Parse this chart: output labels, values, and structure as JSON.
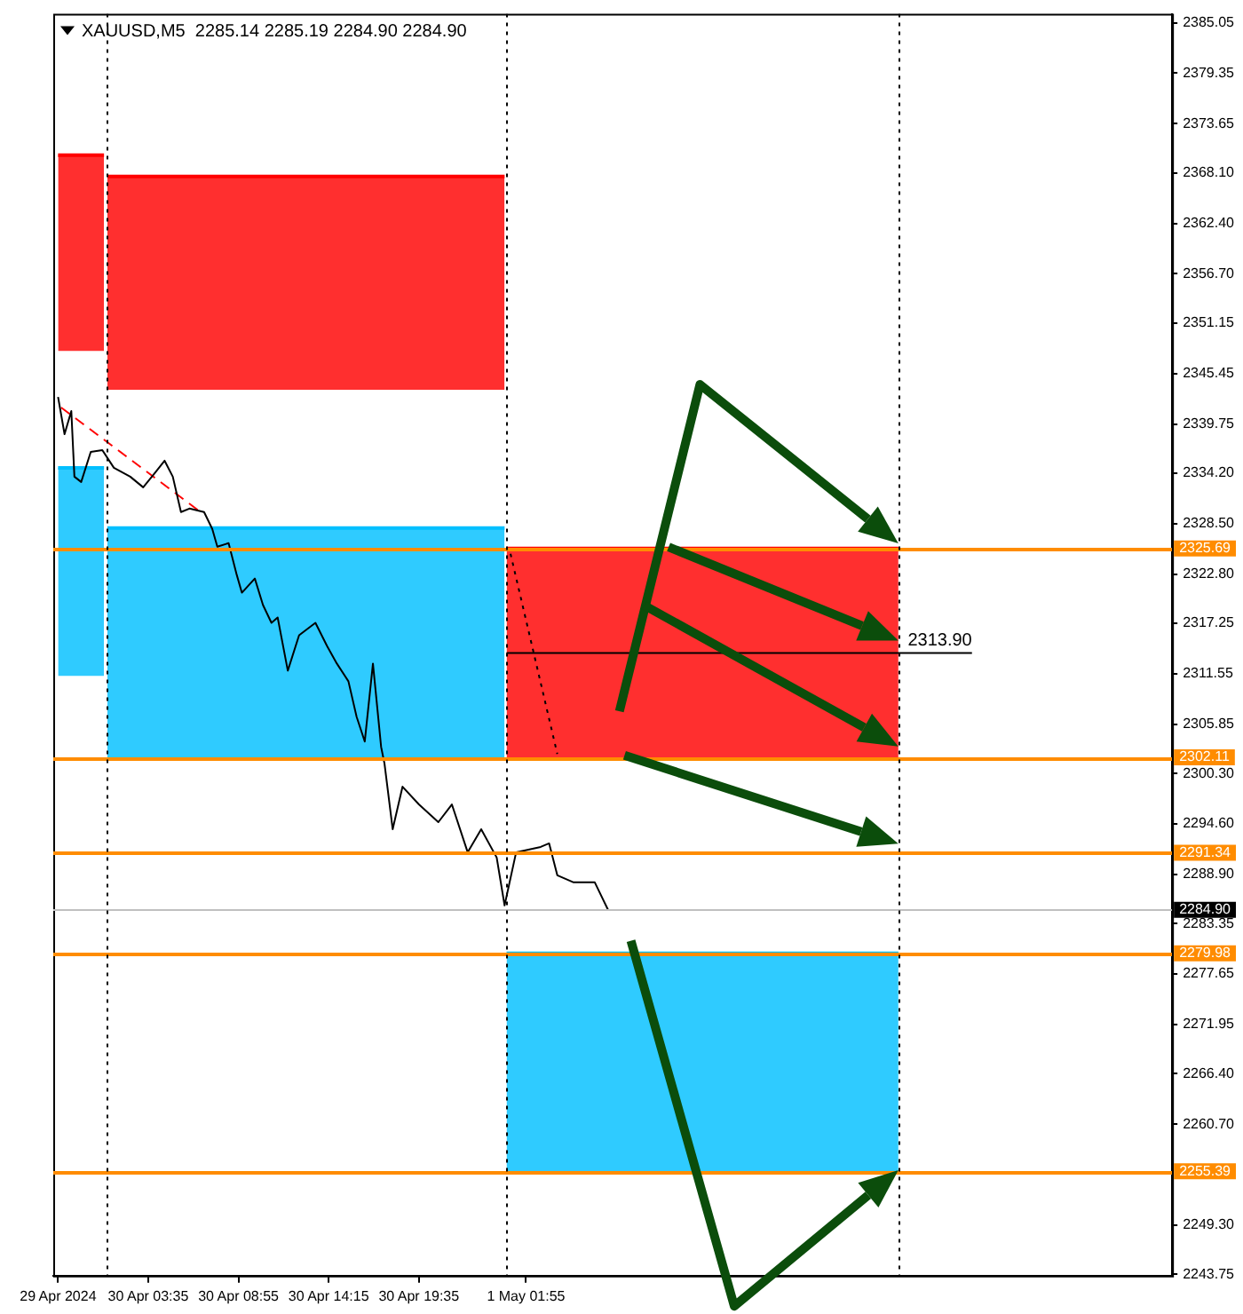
{
  "chart_data": {
    "type": "line",
    "title": "XAUUSD,M5  2285.14 2285.19 2284.90 2284.90",
    "xlim": [
      "2024-04-29T21:58",
      "2024-05-02T16:07"
    ],
    "xticks": [
      {
        "value": "2024-04-29T22:15",
        "label": "29 Apr 2024"
      },
      {
        "value": "2024-04-30T03:35",
        "label": "30 Apr 03:35"
      },
      {
        "value": "2024-04-30T08:55",
        "label": "30 Apr 08:55"
      },
      {
        "value": "2024-04-30T14:15",
        "label": "30 Apr 14:15"
      },
      {
        "value": "2024-04-30T19:35",
        "label": "30 Apr 19:35"
      },
      {
        "value": "2024-05-01T01:55",
        "label": "1 May 01:55"
      }
    ],
    "ylim": [
      2243.6,
      2386.05
    ],
    "yticks": [
      {
        "value": 2385.05,
        "label": "2385.05"
      },
      {
        "value": 2379.35,
        "label": "2379.35"
      },
      {
        "value": 2373.65,
        "label": "2373.65"
      },
      {
        "value": 2368.1,
        "label": "2368.10"
      },
      {
        "value": 2362.4,
        "label": "2362.40"
      },
      {
        "value": 2356.7,
        "label": "2356.70"
      },
      {
        "value": 2351.15,
        "label": "2351.15"
      },
      {
        "value": 2345.45,
        "label": "2345.45"
      },
      {
        "value": 2339.75,
        "label": "2339.75"
      },
      {
        "value": 2334.2,
        "label": "2334.20"
      },
      {
        "value": 2328.5,
        "label": "2328.50"
      },
      {
        "value": 2322.8,
        "label": "2322.80"
      },
      {
        "value": 2317.25,
        "label": "2317.25"
      },
      {
        "value": 2311.55,
        "label": "2311.55"
      },
      {
        "value": 2305.85,
        "label": "2305.85"
      },
      {
        "value": 2300.3,
        "label": "2300.30"
      },
      {
        "value": 2294.6,
        "label": "2294.60"
      },
      {
        "value": 2288.9,
        "label": "2288.90"
      },
      {
        "value": 2283.35,
        "label": "2283.35"
      },
      {
        "value": 2277.65,
        "label": "2277.65"
      },
      {
        "value": 2271.95,
        "label": "2271.95"
      },
      {
        "value": 2266.4,
        "label": "2266.40"
      },
      {
        "value": 2260.7,
        "label": "2260.70"
      },
      {
        "value": 2249.3,
        "label": "2249.30"
      },
      {
        "value": 2243.75,
        "label": "2243.75"
      }
    ],
    "series": [
      {
        "type": "line",
        "color": "#ff0000",
        "x": [
          "2024-04-29T22:15",
          "2024-04-29T23:37",
          "2024-04-30T00:58"
        ],
        "values": [
          2370.1,
          2370.1,
          2370.1
        ],
        "lower": [
          2348.0,
          2348.0,
          2348.0
        ],
        "upper": [
          2370.1,
          2370.1,
          2370.1
        ]
      },
      {
        "type": "line",
        "color": "#ff0000",
        "x": [
          "2024-04-30T01:10",
          "2024-04-30T12:54",
          "2024-05-01T00:39"
        ],
        "values": [
          2367.7,
          2367.7,
          2367.7
        ],
        "lower": [
          2343.6,
          2343.6,
          2343.6
        ],
        "upper": [
          2367.7,
          2367.7,
          2367.7
        ]
      },
      {
        "type": "line",
        "color": "#00bfff",
        "x": [
          "2024-04-29T22:15",
          "2024-04-29T23:37",
          "2024-04-30T00:58"
        ],
        "values": [
          2334.8,
          2334.8,
          2334.8
        ],
        "lower": [
          2311.3,
          2311.3,
          2311.3
        ],
        "upper": [
          2334.8,
          2334.8,
          2334.8
        ]
      },
      {
        "type": "line",
        "color": "#00bfff",
        "x": [
          "2024-04-30T01:10",
          "2024-04-30T12:54",
          "2024-05-01T00:39"
        ],
        "values": [
          2328.0,
          2328.0,
          2328.0
        ],
        "lower": [
          2302.1,
          2302.1,
          2302.1
        ],
        "upper": [
          2328.0,
          2328.0,
          2328.0
        ]
      },
      {
        "type": "line",
        "color": "#ff0000",
        "x": [
          "2024-05-01T00:46",
          "2024-05-01T12:21",
          "2024-05-01T23:56"
        ],
        "values": [
          2325.7,
          2325.7,
          2325.7
        ],
        "lower": [
          2302.1,
          2302.1,
          2302.1
        ],
        "upper": [
          2325.7,
          2325.7,
          2325.7
        ]
      },
      {
        "type": "line",
        "color": "#00bfff",
        "x": [
          "2024-05-01T00:46",
          "2024-05-01T12:21",
          "2024-05-01T23:56"
        ],
        "values": [
          2280.0,
          2280.0,
          2280.0
        ],
        "lower": [
          2255.4,
          2255.4,
          2255.4
        ],
        "upper": [
          2280.0,
          2280.0,
          2280.0
        ]
      },
      {
        "type": "line",
        "color": "#ff0000",
        "line_style": "dashed",
        "x": [
          "2024-04-29T22:26",
          "2024-04-30T06:41"
        ],
        "values": [
          2341.6,
          2329.8
        ]
      },
      {
        "type": "line",
        "color": "#000000",
        "line_style": "dotted",
        "x": [
          "2024-05-01T01:00",
          "2024-05-01T03:46"
        ],
        "values": [
          2325.1,
          2302.5
        ]
      },
      {
        "type": "line",
        "color": "#000000",
        "x": [
          "2024-05-01T00:46",
          "2024-05-02T04:17"
        ],
        "values": [
          2313.9,
          2313.9
        ]
      },
      {
        "color": "#000000",
        "x": [
          "2024-04-29T22:15",
          "2024-04-29T22:38",
          "2024-04-29T23:02",
          "2024-04-29T23:13",
          "2024-04-29T23:37",
          "2024-04-30T00:11",
          "2024-04-30T00:52",
          "2024-04-30T01:33",
          "2024-04-30T02:31",
          "2024-04-30T03:17",
          "2024-04-30T03:58",
          "2024-04-30T04:33",
          "2024-04-30T05:02",
          "2024-04-30T05:31",
          "2024-04-30T06:01",
          "2024-04-30T06:53",
          "2024-04-30T07:22",
          "2024-04-30T07:40",
          "2024-04-30T08:20",
          "2024-04-30T08:49",
          "2024-04-30T09:07",
          "2024-04-30T09:53",
          "2024-04-30T10:22",
          "2024-04-30T10:52",
          "2024-04-30T11:14",
          "2024-04-30T11:50",
          "2024-04-30T12:30",
          "2024-04-30T13:28",
          "2024-04-30T14:09",
          "2024-04-30T14:44",
          "2024-04-30T15:25",
          "2024-04-30T15:54",
          "2024-04-30T16:23",
          "2024-04-30T16:52",
          "2024-04-30T17:21",
          "2024-04-30T17:33",
          "2024-04-30T18:02",
          "2024-04-30T18:37",
          "2024-04-30T19:35",
          "2024-04-30T20:44",
          "2024-04-30T21:32",
          "2024-04-30T22:28",
          "2024-04-30T23:16",
          "2024-05-01T00:11",
          "2024-05-01T00:39",
          "2024-05-01T01:20",
          "2024-05-01T02:47",
          "2024-05-01T03:17",
          "2024-05-01T03:46",
          "2024-05-01T04:44",
          "2024-05-01T05:59",
          "2024-05-01T06:46"
        ],
        "values": [
          2342.8,
          2338.6,
          2341.2,
          2333.8,
          2333.2,
          2336.6,
          2336.8,
          2334.8,
          2333.8,
          2332.6,
          2334.2,
          2335.6,
          2333.8,
          2329.8,
          2330.2,
          2329.8,
          2327.9,
          2325.9,
          2326.3,
          2322.7,
          2320.7,
          2322.3,
          2319.3,
          2317.3,
          2317.9,
          2311.9,
          2315.9,
          2317.3,
          2314.7,
          2312.7,
          2310.7,
          2306.7,
          2303.9,
          2312.7,
          2303.3,
          2301.4,
          2294.0,
          2298.8,
          2296.8,
          2294.8,
          2296.8,
          2291.4,
          2294.0,
          2290.8,
          2285.4,
          2291.4,
          2292.0,
          2292.4,
          2288.8,
          2288.0,
          2288.0,
          2284.9
        ]
      }
    ],
    "ref_lines": [
      {
        "axis": "y",
        "value": 2325.69,
        "label": "2325.69",
        "color": "#ff8c00"
      },
      {
        "axis": "y",
        "value": 2302.11,
        "label": "2302.11",
        "color": "#ff8c00"
      },
      {
        "axis": "y",
        "value": 2291.34,
        "label": "2291.34",
        "color": "#ff8c00"
      },
      {
        "axis": "y",
        "value": 2284.9,
        "label": "2284.90",
        "color": "#c0c0c0"
      },
      {
        "axis": "y",
        "value": 2279.98,
        "label": "2279.98",
        "color": "#ff8c00"
      },
      {
        "axis": "y",
        "value": 2255.39,
        "label": "2255.39",
        "color": "#ff8c00"
      },
      {
        "axis": "x",
        "value": "2024-04-30T01:10",
        "color": "#000000",
        "line_style": "dotted"
      },
      {
        "axis": "x",
        "value": "2024-05-01T00:46",
        "color": "#000000",
        "line_style": "dotted"
      },
      {
        "axis": "x",
        "value": "2024-05-01T23:56",
        "color": "#000000",
        "line_style": "dotted"
      }
    ],
    "annotations": [
      {
        "text": "2313.90",
        "x": "2024-05-02T04:17",
        "y": 2313.9
      }
    ],
    "grid": false,
    "legend": false,
    "marker": "none"
  }
}
